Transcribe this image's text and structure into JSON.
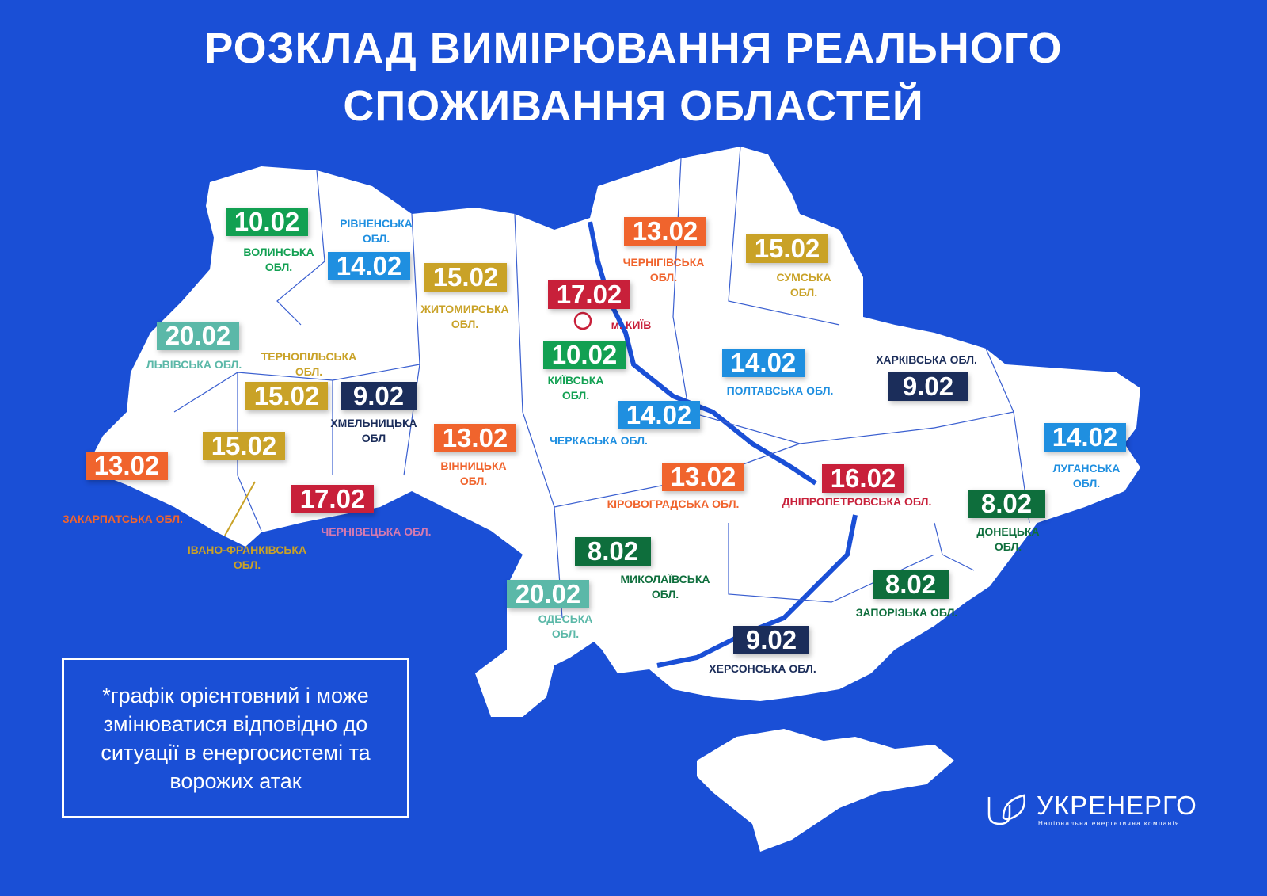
{
  "title": {
    "line1": "РОЗКЛАД ВИМІРЮВАННЯ РЕАЛЬНОГО",
    "line2": "СПОЖИВАННЯ ОБЛАСТЕЙ"
  },
  "colors": {
    "background": "#1a4fd6",
    "map": "#ffffff"
  },
  "regions": [
    {
      "name": "ВОЛИНСЬКА\nОБЛ.",
      "date": "10.02",
      "color": "#12a052"
    },
    {
      "name": "РІВНЕНСЬКА\nОБЛ.",
      "date": "14.02",
      "color": "#1f8fe0"
    },
    {
      "name": "ЖИТОМИРСЬКА\nОБЛ.",
      "date": "15.02",
      "color": "#c9a227"
    },
    {
      "name": "м. КИЇВ",
      "date": "17.02",
      "color": "#c8203a"
    },
    {
      "name": "КИЇВСЬКА\nОБЛ.",
      "date": "10.02",
      "color": "#12a052"
    },
    {
      "name": "ЧЕРНІГІВСЬКА\nОБЛ.",
      "date": "13.02",
      "color": "#f0642d"
    },
    {
      "name": "СУМСЬКА\nОБЛ.",
      "date": "15.02",
      "color": "#c9a227"
    },
    {
      "name": "ЛЬВІВСЬКА ОБЛ.",
      "date": "20.02",
      "color": "#5bb8a8"
    },
    {
      "name": "ТЕРНОПІЛЬСЬКА\nОБЛ.",
      "date": "15.02",
      "color": "#c9a227"
    },
    {
      "name": "ХМЕЛЬНИЦЬКА\nОБЛ",
      "date": "9.02",
      "color": "#1b2d5a"
    },
    {
      "name": "ЗАКАРПАТСЬКА ОБЛ.",
      "date": "13.02",
      "color": "#f0642d"
    },
    {
      "name": "ІВАНО-ФРАНКІВСЬКА\nОБЛ.",
      "date": "15.02",
      "color": "#c9a227"
    },
    {
      "name": "ЧЕРНІВЕЦЬКА ОБЛ.",
      "date": "17.02",
      "color": "#c8203a",
      "label_color": "#d57ab0"
    },
    {
      "name": "ВІННИЦЬКА\nОБЛ.",
      "date": "13.02",
      "color": "#f0642d"
    },
    {
      "name": "ЧЕРКАСЬКА ОБЛ.",
      "date": "14.02",
      "color": "#1f8fe0"
    },
    {
      "name": "ПОЛТАВСЬКА ОБЛ.",
      "date": "14.02",
      "color": "#1f8fe0"
    },
    {
      "name": "ХАРКІВСЬКА ОБЛ.",
      "date": "9.02",
      "color": "#1b2d5a"
    },
    {
      "name": "ЛУГАНСЬКА\nОБЛ.",
      "date": "14.02",
      "color": "#1f8fe0"
    },
    {
      "name": "КІРОВОГРАДСЬКА ОБЛ.",
      "date": "13.02",
      "color": "#f0642d"
    },
    {
      "name": "ДНІПРОПЕТРОВСЬКА ОБЛ.",
      "date": "16.02",
      "color": "#c8203a"
    },
    {
      "name": "ДОНЕЦЬКА\nОБЛ.",
      "date": "8.02",
      "color": "#0e6e3c"
    },
    {
      "name": "МИКОЛАЇВСЬКА\nОБЛ.",
      "date": "8.02",
      "color": "#0e6e3c"
    },
    {
      "name": "ОДЕСЬКА\nОБЛ.",
      "date": "20.02",
      "color": "#5bb8a8"
    },
    {
      "name": "ЗАПОРІЗЬКА ОБЛ.",
      "date": "8.02",
      "color": "#0e6e3c"
    },
    {
      "name": "ХЕРСОНСЬКА ОБЛ.",
      "date": "9.02",
      "color": "#1b2d5a"
    }
  ],
  "note": "*графік орієнтовний і може змінюватися відповідно до ситуації в енергосистемі та ворожих атак",
  "logo": {
    "name": "УКРЕНЕРГО",
    "subtitle": "Національна енергетична компанія"
  }
}
